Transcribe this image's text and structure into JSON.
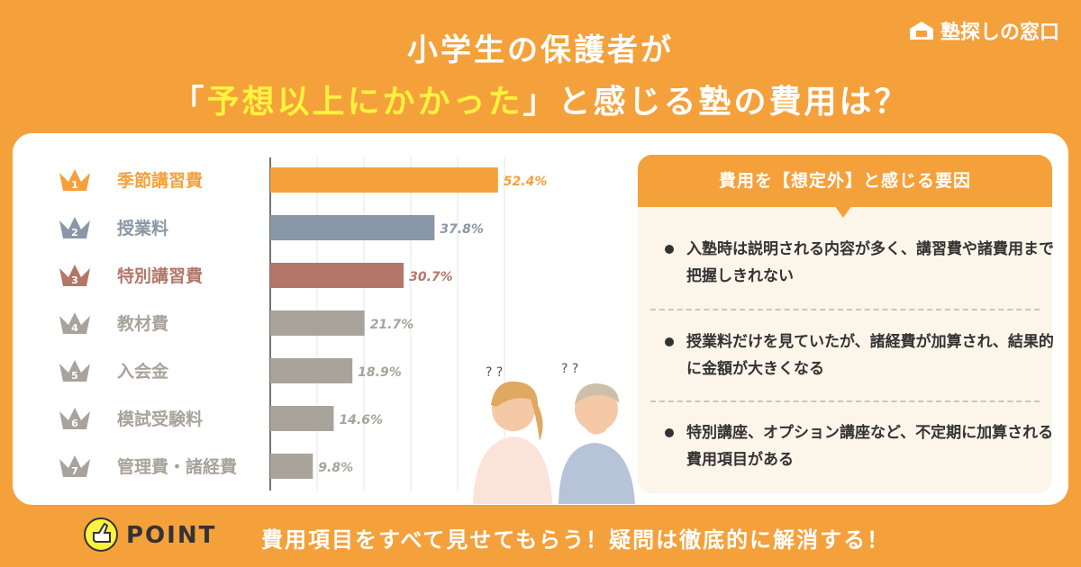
{
  "title": {
    "line1": "小学生の保護者が",
    "line2_open": "「",
    "line2_highlight": "予想以上にかかった",
    "line2_close": "」と感じる塾の費用は？"
  },
  "logo": {
    "text": "塾探しの窓口"
  },
  "reasons": {
    "heading": "費用を【想定外】と感じる要因",
    "items": [
      "入塾時は説明される内容が多く、講習費や諸費用まで把握しきれない",
      "授業料だけを見ていたが、諸経費が加算され、結果的に金額が大きくなる",
      "特別講座、オプション講座など、不定期に加算される費用項目がある"
    ]
  },
  "point": {
    "badge": "POINT",
    "text": "費用項目をすべて見せてもらう！疑問は徹底的に解消する！"
  },
  "colors": {
    "background": "#f4a13c",
    "rank1": "#f4a13c",
    "rank2": "#8a97a6",
    "rank3": "#b3776a",
    "rank_other": "#a8a39b",
    "highlight": "#fff23f"
  },
  "chart_data": {
    "type": "bar",
    "orientation": "horizontal",
    "categories": [
      "季節講習費",
      "授業料",
      "特別講習費",
      "教材費",
      "入会金",
      "模試受験料",
      "管理費・諸経費"
    ],
    "ranks": [
      "1",
      "2",
      "3",
      "4",
      "5",
      "6",
      "7"
    ],
    "values": [
      52.4,
      37.8,
      30.7,
      21.7,
      18.9,
      14.6,
      9.8
    ],
    "value_labels": [
      "52.4%",
      "37.8%",
      "30.7%",
      "21.7%",
      "18.9%",
      "14.6%",
      "9.8%"
    ],
    "xlim": [
      0,
      60
    ],
    "grid": true
  }
}
